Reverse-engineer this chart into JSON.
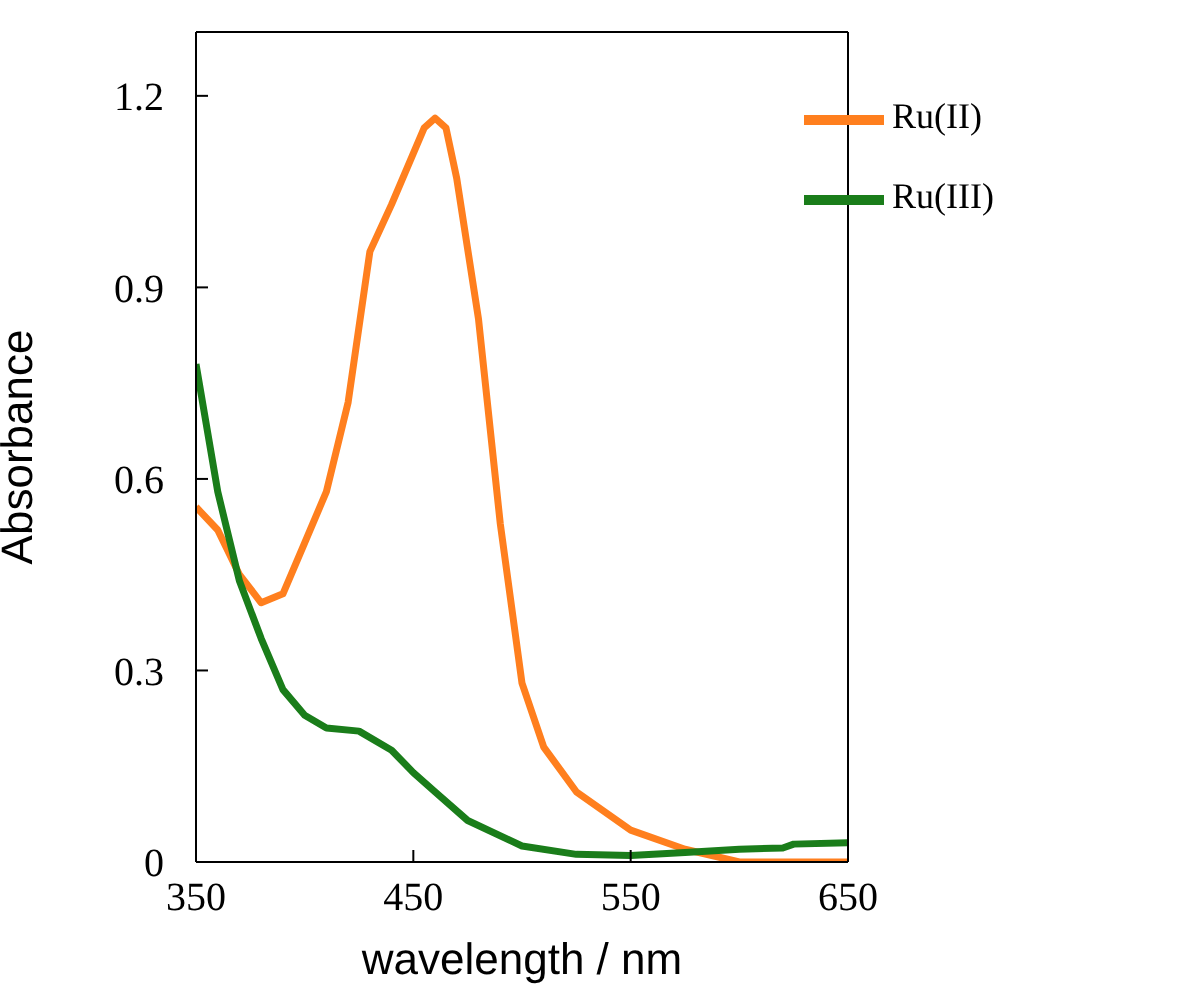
{
  "chart_data": {
    "type": "line",
    "xlabel": "wavelength / nm",
    "ylabel": "Absorbance",
    "xlim": [
      350,
      650
    ],
    "xticks": [
      350,
      450,
      550,
      650
    ],
    "ylim": [
      0,
      1.3
    ],
    "yticks": [
      0,
      0.3,
      0.6,
      0.9,
      1.2
    ],
    "legend": "top right",
    "grid": false,
    "marker": "none",
    "line_style": "solid",
    "series": [
      {
        "name": "Ru(II)",
        "color": "#ff7f1e",
        "x": [
          350,
          360,
          370,
          380,
          390,
          400,
          410,
          420,
          430,
          440,
          450,
          455,
          460,
          465,
          470,
          480,
          490,
          500,
          510,
          525,
          550,
          575,
          600,
          625,
          650
        ],
        "values": [
          0.556,
          0.52,
          0.45,
          0.406,
          0.42,
          0.5,
          0.58,
          0.72,
          0.956,
          1.03,
          1.11,
          1.15,
          1.165,
          1.15,
          1.07,
          0.85,
          0.53,
          0.28,
          0.18,
          0.11,
          0.05,
          0.02,
          0.0,
          0.0,
          0.0
        ]
      },
      {
        "name": "Ru(III)",
        "color": "#1a7d1a",
        "x": [
          350,
          360,
          370,
          380,
          390,
          400,
          410,
          425,
          440,
          450,
          460,
          475,
          500,
          525,
          550,
          575,
          600,
          620,
          625,
          650
        ],
        "values": [
          0.78,
          0.58,
          0.44,
          0.35,
          0.27,
          0.23,
          0.21,
          0.205,
          0.175,
          0.14,
          0.11,
          0.065,
          0.025,
          0.012,
          0.01,
          0.015,
          0.02,
          0.022,
          0.028,
          0.03
        ]
      }
    ]
  }
}
